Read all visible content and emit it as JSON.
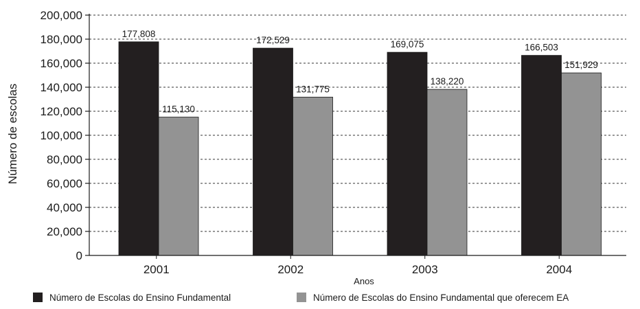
{
  "chart_data": {
    "type": "bar",
    "categories": [
      "2001",
      "2002",
      "2003",
      "2004"
    ],
    "series": [
      {
        "name": "Número de Escolas do Ensino Fundamental",
        "values": [
          177808,
          172529,
          169075,
          166503
        ],
        "value_labels": [
          "177,808",
          "172,529",
          "169,075",
          "166,503"
        ],
        "color": "#231f20"
      },
      {
        "name": "Número de Escolas do Ensino Fundamental que oferecem EA",
        "values": [
          115130,
          131775,
          138220,
          151929
        ],
        "value_labels": [
          "115,130",
          "131,775",
          "138,220",
          "151,929"
        ],
        "color": "#939393"
      }
    ],
    "title": "",
    "xlabel": "Anos",
    "ylabel": "Número de escolas",
    "ylim": [
      0,
      200000
    ],
    "yticks": [
      0,
      20000,
      40000,
      60000,
      80000,
      100000,
      120000,
      140000,
      160000,
      180000,
      200000
    ],
    "ytick_labels": [
      "0",
      "20,000",
      "40,000",
      "60,000",
      "80,000",
      "100,000",
      "120,000",
      "140,000",
      "160,000",
      "180,000",
      "200,000"
    ],
    "grid": "horizontal dashed",
    "legend_position": "bottom"
  }
}
